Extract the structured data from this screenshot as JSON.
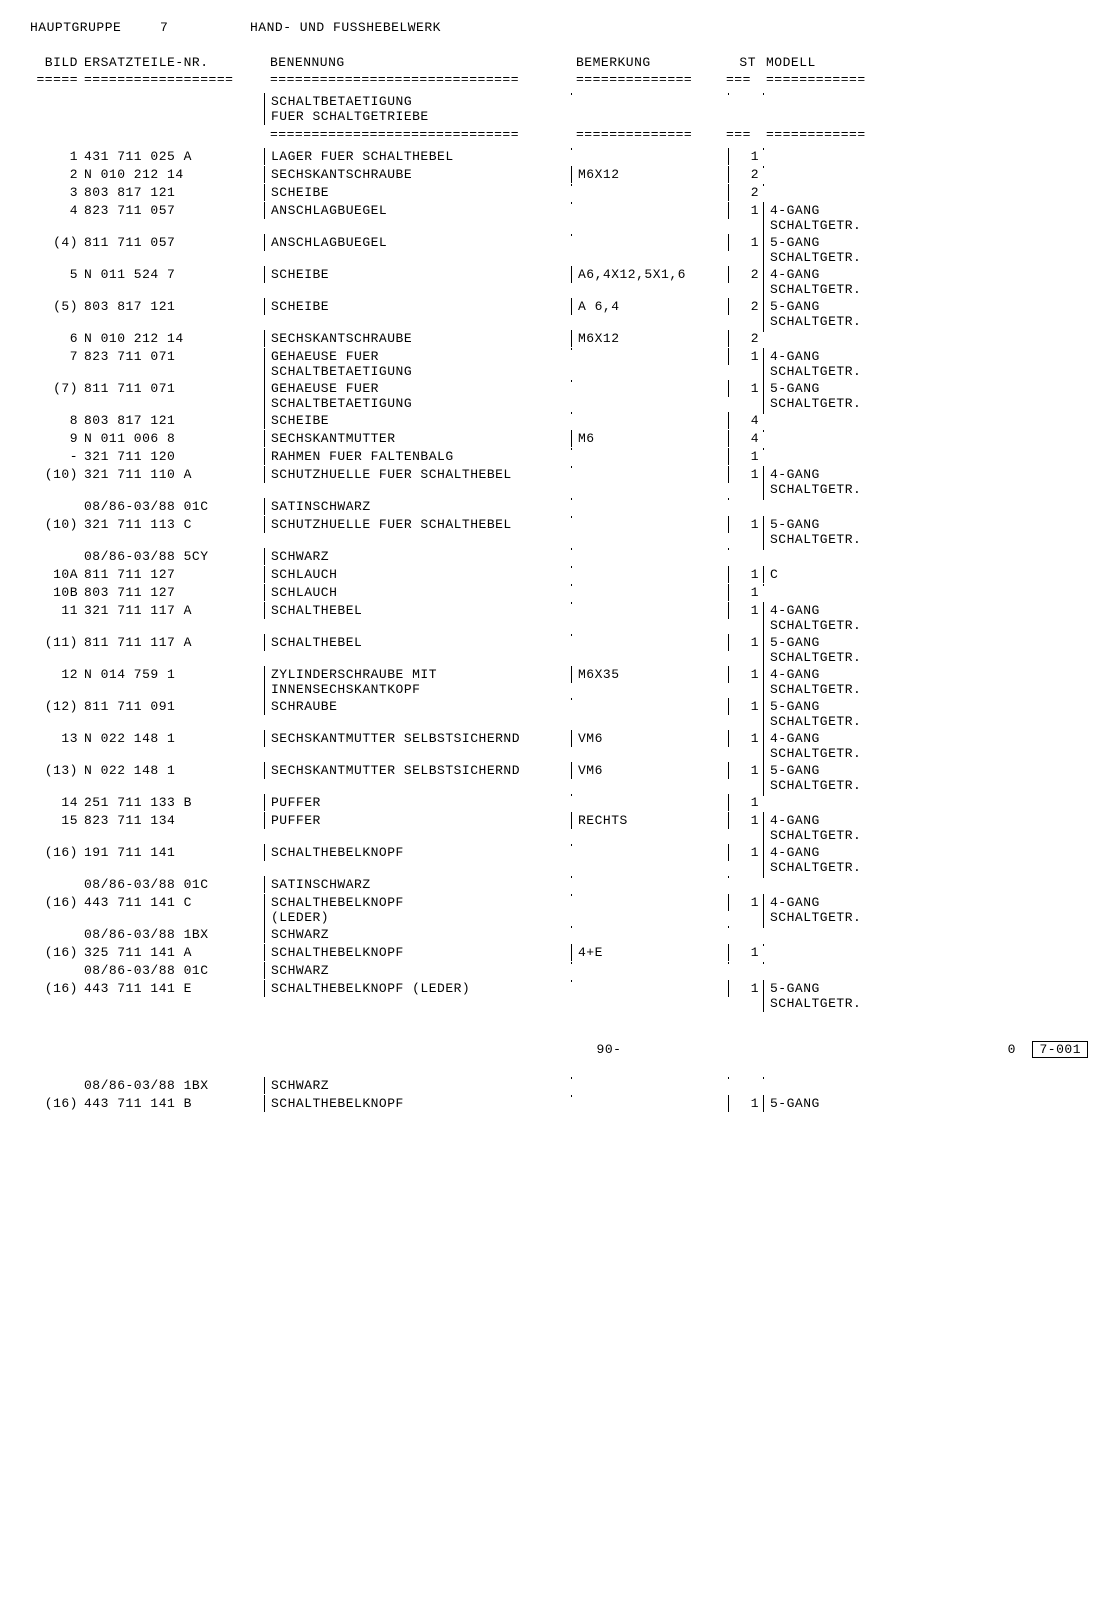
{
  "header": {
    "group_label": "HAUPTGRUPPE",
    "group_num": "7",
    "title": "HAND- UND FUSSHEBELWERK"
  },
  "columns": {
    "bild": "BILD",
    "ers": "ERSATZTEILE-NR.",
    "ben": "BENENNUNG",
    "bem": "BEMERKUNG",
    "st": "ST",
    "mod": "MODELL"
  },
  "separators": {
    "bild": "=====",
    "ers": "==================",
    "ben": "==============================",
    "bem": "==============",
    "st": "===",
    "mod": "============"
  },
  "section_title": {
    "line1": "SCHALTBETAETIGUNG",
    "line2": "FUER SCHALTGETRIEBE"
  },
  "rows": [
    {
      "bild": "1",
      "ers": "  431 711 025 A",
      "ben": "LAGER FUER SCHALTHEBEL",
      "bem": "",
      "st": "1",
      "mod": ""
    },
    {
      "bild": "2",
      "ers": "N   010 212 14",
      "ben": "SECHSKANTSCHRAUBE",
      "bem": "M6X12",
      "st": "2",
      "mod": ""
    },
    {
      "bild": "3",
      "ers": "  803 817 121",
      "ben": "SCHEIBE",
      "bem": "",
      "st": "2",
      "mod": ""
    },
    {
      "bild": "4",
      "ers": "  823 711 057",
      "ben": "ANSCHLAGBUEGEL",
      "bem": "",
      "st": "1",
      "mod": "4-GANG\nSCHALTGETR."
    },
    {
      "bild": "(4)",
      "ers": "  811 711 057",
      "ben": "ANSCHLAGBUEGEL",
      "bem": "",
      "st": "1",
      "mod": "5-GANG\nSCHALTGETR."
    },
    {
      "bild": "5",
      "ers": "N   011 524 7",
      "ben": "SCHEIBE",
      "bem": "A6,4X12,5X1,6",
      "st": "2",
      "mod": "4-GANG\nSCHALTGETR."
    },
    {
      "bild": "(5)",
      "ers": "  803 817 121",
      "ben": "SCHEIBE",
      "bem": "A 6,4",
      "st": "2",
      "mod": "5-GANG\nSCHALTGETR."
    },
    {
      "bild": "6",
      "ers": "N   010 212 14",
      "ben": "SECHSKANTSCHRAUBE",
      "bem": "M6X12",
      "st": "2",
      "mod": ""
    },
    {
      "bild": "7",
      "ers": "  823 711 071",
      "ben": "GEHAEUSE FUER\nSCHALTBETAETIGUNG",
      "bem": "",
      "st": "1",
      "mod": "4-GANG\nSCHALTGETR."
    },
    {
      "bild": "(7)",
      "ers": "  811 711 071",
      "ben": "GEHAEUSE FUER\nSCHALTBETAETIGUNG",
      "bem": "",
      "st": "1",
      "mod": "5-GANG\nSCHALTGETR."
    },
    {
      "bild": "8",
      "ers": "  803 817 121",
      "ben": "SCHEIBE",
      "bem": "",
      "st": "4",
      "mod": ""
    },
    {
      "bild": "9",
      "ers": "N   011 006 8",
      "ben": "SECHSKANTMUTTER",
      "bem": "M6",
      "st": "4",
      "mod": ""
    },
    {
      "bild": "-",
      "ers": "  321 711 120",
      "ben": "RAHMEN FUER FALTENBALG",
      "bem": "",
      "st": "1",
      "mod": ""
    },
    {
      "bild": "(10)",
      "ers": "  321 711 110 A",
      "ben": "SCHUTZHUELLE FUER SCHALTHEBEL",
      "bem": "",
      "st": "1",
      "mod": "4-GANG\nSCHALTGETR."
    },
    {
      "bild": "",
      "ers": "08/86-03/88    01C",
      "ben": "SATINSCHWARZ",
      "bem": "",
      "st": "",
      "mod": ""
    },
    {
      "bild": "(10)",
      "ers": "  321 711 113 C",
      "ben": "SCHUTZHUELLE FUER SCHALTHEBEL",
      "bem": "",
      "st": "1",
      "mod": "5-GANG\nSCHALTGETR."
    },
    {
      "bild": "",
      "ers": "08/86-03/88    5CY",
      "ben": "SCHWARZ",
      "bem": "",
      "st": "",
      "mod": ""
    },
    {
      "bild": "10A",
      "ers": "  811 711 127",
      "ben": "SCHLAUCH",
      "bem": "",
      "st": "1",
      "mod": "C"
    },
    {
      "bild": "10B",
      "ers": "  803 711 127",
      "ben": "SCHLAUCH",
      "bem": "",
      "st": "1",
      "mod": ""
    },
    {
      "bild": "11",
      "ers": "  321 711 117 A",
      "ben": "SCHALTHEBEL",
      "bem": "",
      "st": "1",
      "mod": "4-GANG\nSCHALTGETR."
    },
    {
      "bild": "(11)",
      "ers": "  811 711 117 A",
      "ben": "SCHALTHEBEL",
      "bem": "",
      "st": "1",
      "mod": "5-GANG\nSCHALTGETR."
    },
    {
      "bild": "12",
      "ers": "N   014 759 1",
      "ben": "ZYLINDERSCHRAUBE MIT\nINNENSECHSKANTKOPF",
      "bem": "M6X35",
      "st": "1",
      "mod": "4-GANG\nSCHALTGETR."
    },
    {
      "bild": "(12)",
      "ers": "  811 711 091",
      "ben": "SCHRAUBE",
      "bem": "",
      "st": "1",
      "mod": "5-GANG\nSCHALTGETR."
    },
    {
      "bild": "13",
      "ers": "N   022 148 1",
      "ben": "SECHSKANTMUTTER SELBSTSICHERND",
      "bem": "VM6",
      "st": "1",
      "mod": "4-GANG\nSCHALTGETR."
    },
    {
      "bild": "(13)",
      "ers": "N   022 148 1",
      "ben": "SECHSKANTMUTTER SELBSTSICHERND",
      "bem": "VM6",
      "st": "1",
      "mod": "5-GANG\nSCHALTGETR."
    },
    {
      "bild": "14",
      "ers": "  251 711 133 B",
      "ben": "PUFFER",
      "bem": "",
      "st": "1",
      "mod": ""
    },
    {
      "bild": "15",
      "ers": "  823 711 134",
      "ben": "PUFFER",
      "bem": "RECHTS",
      "st": "1",
      "mod": "4-GANG\nSCHALTGETR."
    },
    {
      "bild": "(16)",
      "ers": "  191 711 141",
      "ben": "SCHALTHEBELKNOPF",
      "bem": "",
      "st": "1",
      "mod": "4-GANG\nSCHALTGETR."
    },
    {
      "bild": "",
      "ers": "08/86-03/88    01C",
      "ben": "SATINSCHWARZ",
      "bem": "",
      "st": "",
      "mod": ""
    },
    {
      "bild": "(16)",
      "ers": "  443 711 141 C",
      "ben": "SCHALTHEBELKNOPF\n(LEDER)",
      "bem": "",
      "st": "1",
      "mod": "4-GANG\nSCHALTGETR."
    },
    {
      "bild": "",
      "ers": "08/86-03/88    1BX",
      "ben": "SCHWARZ",
      "bem": "",
      "st": "",
      "mod": ""
    },
    {
      "bild": "(16)",
      "ers": "  325 711 141 A",
      "ben": "SCHALTHEBELKNOPF",
      "bem": "4+E",
      "st": "1",
      "mod": ""
    },
    {
      "bild": "",
      "ers": "08/86-03/88    01C",
      "ben": "SCHWARZ",
      "bem": "",
      "st": "",
      "mod": ""
    },
    {
      "bild": "(16)",
      "ers": "  443 711 141 E",
      "ben": "SCHALTHEBELKNOPF (LEDER)",
      "bem": "",
      "st": "1",
      "mod": "5-GANG\nSCHALTGETR."
    }
  ],
  "footer": {
    "page": "90-",
    "code_prefix": "0",
    "code": "7-001"
  },
  "bottom_rows": [
    {
      "bild": "",
      "ers": "08/86-03/88    1BX",
      "ben": "SCHWARZ",
      "bem": "",
      "st": "",
      "mod": ""
    },
    {
      "bild": "(16)",
      "ers": "  443 711 141 B",
      "ben": "SCHALTHEBELKNOPF",
      "bem": "",
      "st": "1",
      "mod": "5-GANG"
    }
  ]
}
